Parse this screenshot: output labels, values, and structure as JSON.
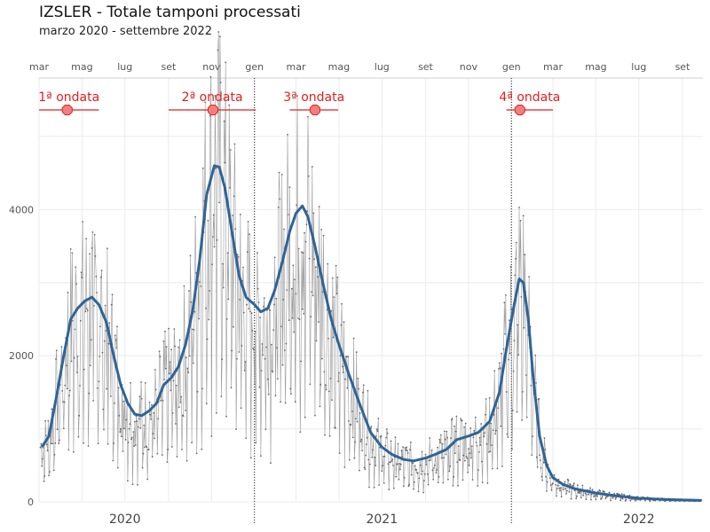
{
  "header": {
    "title": "IZSLER - Totale tamponi processati",
    "subtitle": "marzo 2020 - settembre 2022"
  },
  "colors": {
    "trend": "#2f6496",
    "daily": "#9a9a9a",
    "wave": "#e02020",
    "wave_fill": "#f08080",
    "grid": "#ebebeb"
  },
  "chart_data": {
    "type": "line",
    "title": "IZSLER - Totale tamponi processati",
    "subtitle": "marzo 2020 - settembre 2022",
    "xlabel": "",
    "ylabel": "",
    "ylim": [
      0,
      5800
    ],
    "xlim": [
      "2020-03-01",
      "2022-09-30"
    ],
    "grid": true,
    "y_ticks": [
      0,
      2000,
      4000
    ],
    "month_ticks": [
      {
        "date": "2020-03-01",
        "label": "mar"
      },
      {
        "date": "2020-05-01",
        "label": "mag"
      },
      {
        "date": "2020-07-01",
        "label": "lug"
      },
      {
        "date": "2020-09-01",
        "label": "set"
      },
      {
        "date": "2020-11-01",
        "label": "nov"
      },
      {
        "date": "2021-01-01",
        "label": "gen"
      },
      {
        "date": "2021-03-01",
        "label": "mar"
      },
      {
        "date": "2021-05-01",
        "label": "mag"
      },
      {
        "date": "2021-07-01",
        "label": "lug"
      },
      {
        "date": "2021-09-01",
        "label": "set"
      },
      {
        "date": "2021-11-01",
        "label": "nov"
      },
      {
        "date": "2022-01-01",
        "label": "gen"
      },
      {
        "date": "2022-03-01",
        "label": "mar"
      },
      {
        "date": "2022-05-01",
        "label": "mag"
      },
      {
        "date": "2022-07-01",
        "label": "lug"
      },
      {
        "date": "2022-09-01",
        "label": "set"
      }
    ],
    "years": [
      {
        "date": "2020-07-01",
        "label": "2020"
      },
      {
        "date": "2021-07-01",
        "label": "2021"
      },
      {
        "date": "2022-07-01",
        "label": "2022"
      }
    ],
    "year_dividers": [
      "2021-01-01",
      "2022-01-01"
    ],
    "waves": [
      {
        "label": "1ª ondata",
        "start": "2020-03-01",
        "end": "2020-05-25",
        "peak": "2020-04-10"
      },
      {
        "label": "2ª ondata",
        "start": "2020-09-01",
        "end": "2021-01-03",
        "peak": "2020-11-03"
      },
      {
        "label": "3ª ondata",
        "start": "2021-02-20",
        "end": "2021-04-30",
        "peak": "2021-03-28"
      },
      {
        "label": "4ª ondata",
        "start": "2021-12-25",
        "end": "2022-03-01",
        "peak": "2022-01-13"
      }
    ],
    "series": [
      {
        "type": "line",
        "points": [
          [
            "2020-03-05",
            750
          ],
          [
            "2020-03-15",
            900
          ],
          [
            "2020-03-25",
            1400
          ],
          [
            "2020-04-05",
            2000
          ],
          [
            "2020-04-15",
            2500
          ],
          [
            "2020-04-25",
            2650
          ],
          [
            "2020-05-05",
            2750
          ],
          [
            "2020-05-15",
            2800
          ],
          [
            "2020-05-25",
            2700
          ],
          [
            "2020-06-05",
            2450
          ],
          [
            "2020-06-15",
            2000
          ],
          [
            "2020-06-25",
            1600
          ],
          [
            "2020-07-05",
            1350
          ],
          [
            "2020-07-15",
            1200
          ],
          [
            "2020-07-25",
            1180
          ],
          [
            "2020-08-05",
            1250
          ],
          [
            "2020-08-15",
            1350
          ],
          [
            "2020-08-25",
            1600
          ],
          [
            "2020-09-05",
            1700
          ],
          [
            "2020-09-15",
            1850
          ],
          [
            "2020-09-25",
            2150
          ],
          [
            "2020-10-05",
            2600
          ],
          [
            "2020-10-15",
            3300
          ],
          [
            "2020-10-25",
            4200
          ],
          [
            "2020-11-05",
            4600
          ],
          [
            "2020-11-12",
            4580
          ],
          [
            "2020-11-20",
            4300
          ],
          [
            "2020-11-30",
            3700
          ],
          [
            "2020-12-10",
            3100
          ],
          [
            "2020-12-20",
            2800
          ],
          [
            "2021-01-01",
            2700
          ],
          [
            "2021-01-10",
            2600
          ],
          [
            "2021-01-20",
            2650
          ],
          [
            "2021-01-30",
            2900
          ],
          [
            "2021-02-10",
            3300
          ],
          [
            "2021-02-20",
            3700
          ],
          [
            "2021-03-01",
            3950
          ],
          [
            "2021-03-10",
            4050
          ],
          [
            "2021-03-18",
            3900
          ],
          [
            "2021-03-28",
            3500
          ],
          [
            "2021-04-08",
            3000
          ],
          [
            "2021-04-20",
            2500
          ],
          [
            "2021-05-01",
            2150
          ],
          [
            "2021-05-15",
            1750
          ],
          [
            "2021-06-01",
            1300
          ],
          [
            "2021-06-15",
            950
          ],
          [
            "2021-07-01",
            750
          ],
          [
            "2021-07-15",
            650
          ],
          [
            "2021-08-01",
            580
          ],
          [
            "2021-08-15",
            560
          ],
          [
            "2021-09-01",
            600
          ],
          [
            "2021-09-15",
            650
          ],
          [
            "2021-10-01",
            720
          ],
          [
            "2021-10-15",
            850
          ],
          [
            "2021-11-01",
            900
          ],
          [
            "2021-11-15",
            950
          ],
          [
            "2021-12-01",
            1100
          ],
          [
            "2021-12-15",
            1500
          ],
          [
            "2021-12-25",
            2100
          ],
          [
            "2022-01-05",
            2700
          ],
          [
            "2022-01-12",
            3050
          ],
          [
            "2022-01-18",
            3000
          ],
          [
            "2022-01-25",
            2500
          ],
          [
            "2022-02-01",
            1700
          ],
          [
            "2022-02-10",
            900
          ],
          [
            "2022-02-20",
            500
          ],
          [
            "2022-03-01",
            330
          ],
          [
            "2022-03-15",
            240
          ],
          [
            "2022-04-01",
            180
          ],
          [
            "2022-05-01",
            120
          ],
          [
            "2022-06-01",
            80
          ],
          [
            "2022-07-01",
            50
          ],
          [
            "2022-08-01",
            35
          ],
          [
            "2022-09-01",
            25
          ],
          [
            "2022-09-28",
            20
          ]
        ]
      }
    ]
  }
}
